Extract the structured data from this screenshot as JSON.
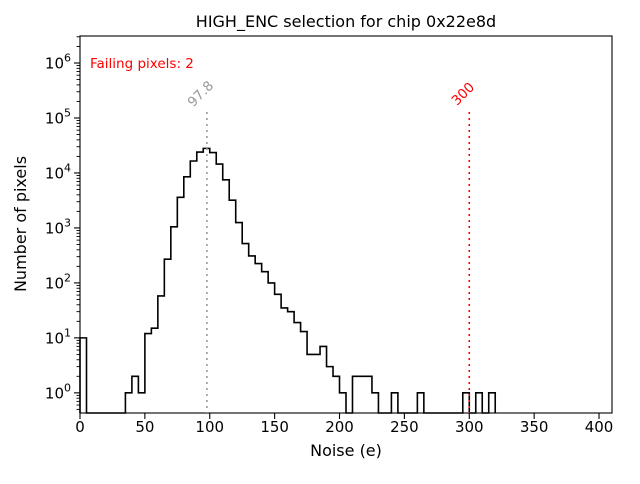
{
  "chart_data": {
    "type": "bar",
    "subtype": "step-histogram",
    "title": "HIGH_ENC selection for chip 0x22e8d",
    "xlabel": "Noise (e)",
    "ylabel": "Number of pixels",
    "yscale": "log",
    "xlim": [
      0,
      410
    ],
    "ylim": [
      0.43,
      3100000
    ],
    "x_ticks": [
      0,
      50,
      100,
      150,
      200,
      250,
      300,
      350,
      400
    ],
    "y_tick_exponents": [
      0,
      1,
      2,
      3,
      4,
      5,
      6
    ],
    "grid": false,
    "legend": "none",
    "line_color": "#000000",
    "bin_width": 5,
    "bin_starts": [
      0,
      5,
      10,
      15,
      20,
      25,
      30,
      35,
      40,
      45,
      50,
      55,
      60,
      65,
      70,
      75,
      80,
      85,
      90,
      95,
      100,
      105,
      110,
      115,
      120,
      125,
      130,
      135,
      140,
      145,
      150,
      155,
      160,
      165,
      170,
      175,
      180,
      185,
      190,
      195,
      200,
      205,
      210,
      215,
      220,
      225,
      230,
      235,
      240,
      245,
      250,
      255,
      260,
      265,
      270,
      275,
      280,
      285,
      290,
      295,
      300,
      305,
      310,
      315
    ],
    "counts": [
      10,
      0,
      0,
      0,
      0,
      0,
      0,
      1,
      2,
      1,
      12,
      15,
      58,
      270,
      1050,
      3600,
      8500,
      16500,
      24000,
      28000,
      23500,
      14500,
      7500,
      3200,
      1250,
      520,
      310,
      225,
      160,
      100,
      62,
      35,
      30,
      19,
      13,
      5,
      5,
      7,
      3,
      2,
      1,
      0,
      2,
      2,
      2,
      1,
      0,
      0,
      1,
      0,
      0,
      0,
      1,
      0,
      0,
      0,
      0,
      0,
      0,
      1,
      0,
      1,
      0,
      1
    ],
    "vlines": [
      {
        "x": 97.8,
        "label": "97.8",
        "color": "#999999",
        "style": "dotted",
        "name": "mean-noise-line"
      },
      {
        "x": 300,
        "label": "300",
        "color": "#ff0000",
        "style": "dotted",
        "name": "cut-threshold-line"
      }
    ],
    "annotation": {
      "text": "Failing pixels: 2",
      "color": "#ff0000"
    }
  }
}
